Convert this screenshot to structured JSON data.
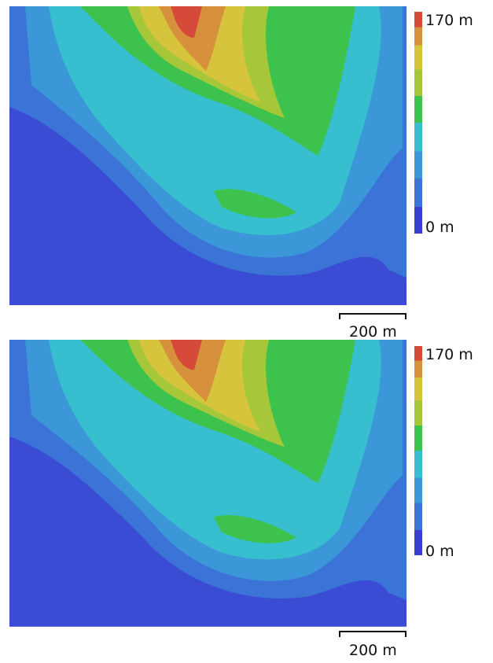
{
  "panels": [
    {
      "legend": {
        "max": "170 m",
        "min": "0 m"
      },
      "scale_bar": "200 m"
    },
    {
      "legend": {
        "max": "170 m",
        "min": "0 m"
      },
      "scale_bar": "200 m"
    }
  ]
}
